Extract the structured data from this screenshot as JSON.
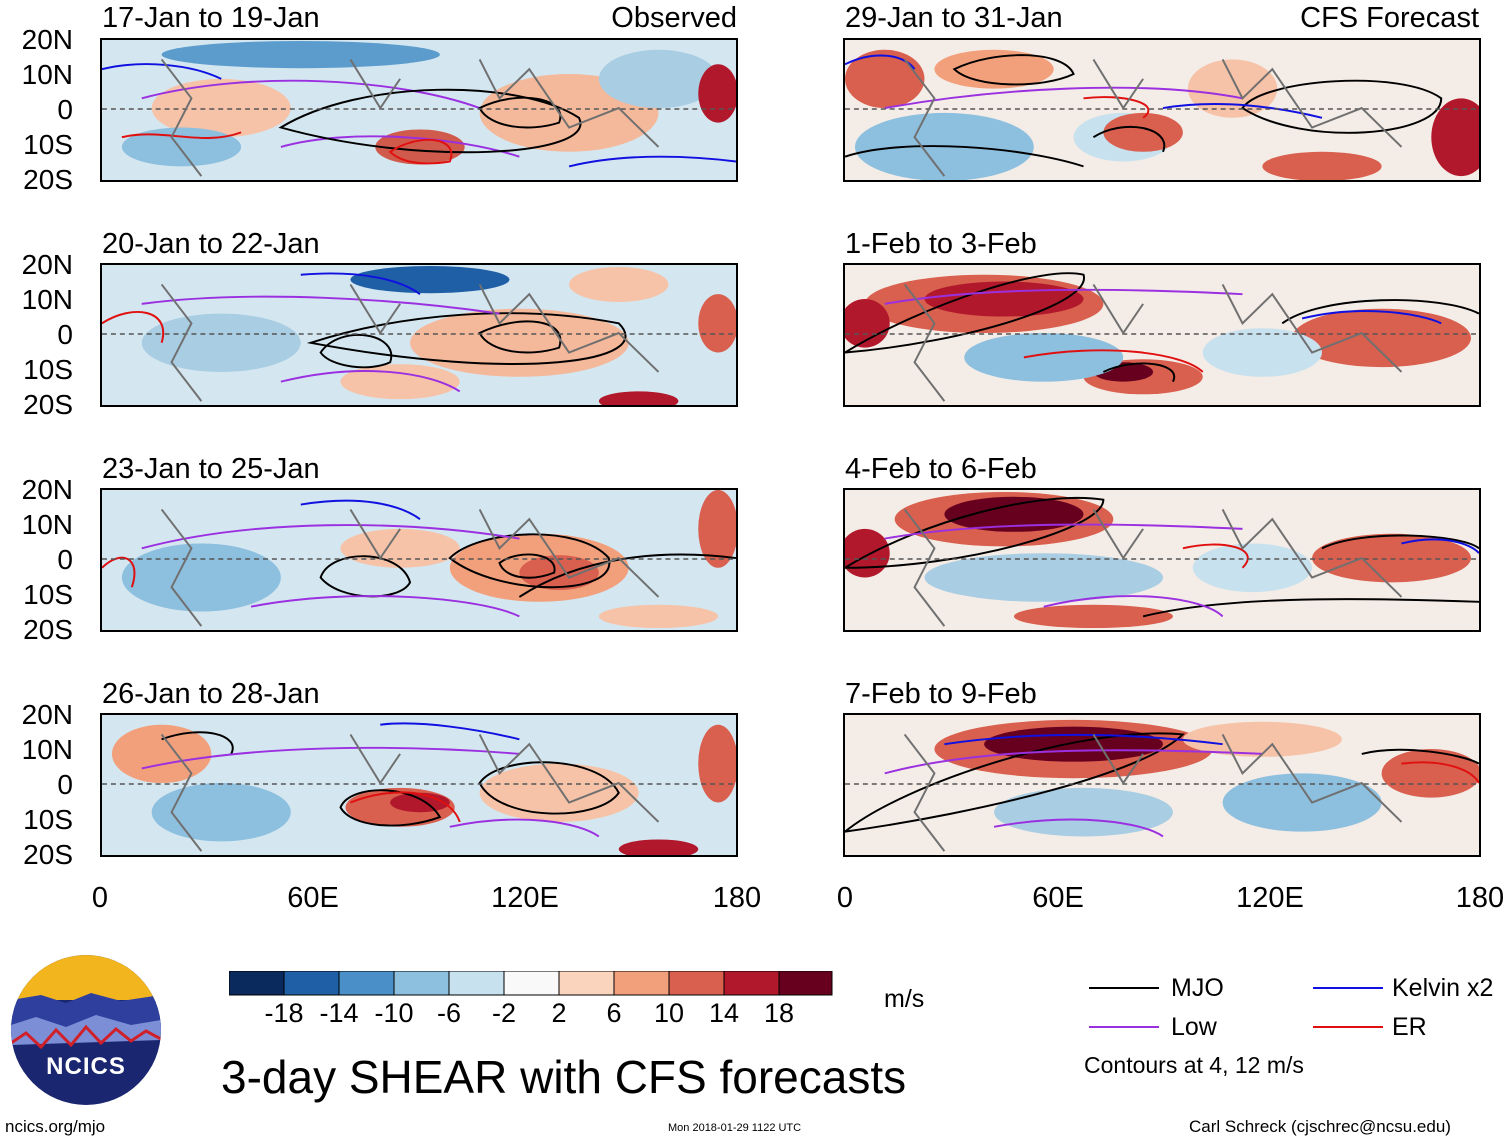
{
  "panels": [
    {
      "title": "17-Jan to 19-Jan",
      "tag": "Observed"
    },
    {
      "title": "20-Jan to 22-Jan",
      "tag": ""
    },
    {
      "title": "23-Jan to 25-Jan",
      "tag": ""
    },
    {
      "title": "26-Jan to 28-Jan",
      "tag": ""
    },
    {
      "title": "29-Jan to 31-Jan",
      "tag": "CFS Forecast"
    },
    {
      "title": "1-Feb to 3-Feb",
      "tag": ""
    },
    {
      "title": "4-Feb to 6-Feb",
      "tag": ""
    },
    {
      "title": "7-Feb to 9-Feb",
      "tag": ""
    }
  ],
  "lat_labels": [
    "20N",
    "10N",
    "0",
    "10S",
    "20S"
  ],
  "lon_labels": [
    "0",
    "60E",
    "120E",
    "180"
  ],
  "colorbar": {
    "colors": [
      "#0a2a5e",
      "#1f5fa6",
      "#4a8fc8",
      "#8dbfdf",
      "#c8e1ef",
      "#f9f9f9",
      "#fbd4bd",
      "#f2a07c",
      "#d95f4e",
      "#b2182b",
      "#67001f"
    ],
    "labels": [
      "-18",
      "-14",
      "-10",
      "-6",
      "-2",
      "2",
      "6",
      "10",
      "14",
      "18"
    ],
    "units": "m/s"
  },
  "legend": [
    {
      "label": "MJO",
      "color": "#000000"
    },
    {
      "label": "Kelvin x2",
      "color": "#1010e0"
    },
    {
      "label": "Low",
      "color": "#9b30e0"
    },
    {
      "label": "ER",
      "color": "#e01010"
    }
  ],
  "contours_note": "Contours at 4, 12 m/s",
  "title": "3-day SHEAR with CFS forecasts",
  "logo_text": "NCICS",
  "footer": {
    "url": "ncics.org/mjo",
    "timestamp": "Mon 2018-01-29 1122 UTC",
    "credit": "Carl Schreck (cjschrec@ncsu.edu)"
  }
}
